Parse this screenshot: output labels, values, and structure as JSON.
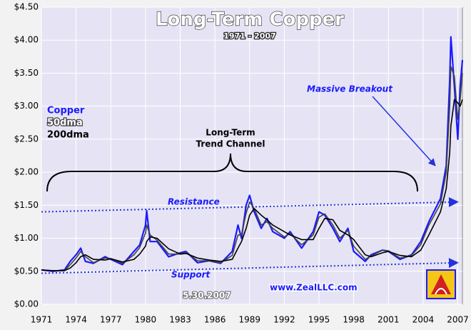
{
  "chart_data": {
    "type": "line",
    "title": "Long-Term Copper",
    "subtitle": "1971 - 2007",
    "x": [
      1971,
      1972,
      1973,
      1973.5,
      1974,
      1974.4,
      1974.8,
      1975.5,
      1976.5,
      1977,
      1978,
      1979,
      1979.5,
      1980,
      1980.1,
      1980.4,
      1981,
      1982,
      1983,
      1983.5,
      1984.5,
      1985.5,
      1986.5,
      1987.5,
      1988,
      1988.3,
      1988.7,
      1989,
      1989.4,
      1990,
      1990.5,
      1991,
      1992,
      1992.5,
      1993.5,
      1994.5,
      1995,
      1995.5,
      1996.2,
      1996.8,
      1997.5,
      1998,
      1999,
      1999.5,
      2000.5,
      2001,
      2002,
      2003,
      2003.8,
      2004.5,
      2005.5,
      2006,
      2006.3,
      2006.4,
      2006.7,
      2007,
      2007.2,
      2007.4
    ],
    "series": [
      {
        "name": "Copper",
        "color": "#1a1aff",
        "values": [
          0.52,
          0.5,
          0.52,
          0.65,
          0.75,
          0.85,
          0.65,
          0.62,
          0.72,
          0.68,
          0.6,
          0.8,
          0.9,
          1.2,
          1.42,
          0.95,
          0.95,
          0.72,
          0.78,
          0.8,
          0.63,
          0.66,
          0.62,
          0.8,
          1.2,
          1.0,
          1.5,
          1.65,
          1.4,
          1.15,
          1.3,
          1.1,
          1.0,
          1.1,
          0.85,
          1.1,
          1.4,
          1.35,
          1.15,
          0.95,
          1.15,
          0.8,
          0.65,
          0.75,
          0.82,
          0.8,
          0.68,
          0.75,
          0.95,
          1.25,
          1.6,
          2.1,
          3.4,
          4.05,
          3.3,
          2.5,
          3.3,
          3.7
        ]
      },
      {
        "name": "50dma",
        "color": "#444444",
        "values": [
          0.52,
          0.51,
          0.51,
          0.6,
          0.7,
          0.8,
          0.72,
          0.63,
          0.7,
          0.69,
          0.62,
          0.75,
          0.86,
          1.08,
          1.2,
          1.05,
          0.97,
          0.76,
          0.76,
          0.79,
          0.66,
          0.66,
          0.63,
          0.74,
          1.05,
          1.05,
          1.38,
          1.55,
          1.45,
          1.2,
          1.25,
          1.15,
          1.02,
          1.07,
          0.9,
          1.05,
          1.32,
          1.37,
          1.2,
          1.0,
          1.12,
          0.88,
          0.68,
          0.73,
          0.82,
          0.81,
          0.7,
          0.74,
          0.9,
          1.2,
          1.52,
          2.0,
          3.0,
          3.6,
          3.45,
          2.8,
          3.1,
          3.5
        ]
      },
      {
        "name": "200dma",
        "color": "#000000",
        "values": [
          0.52,
          0.51,
          0.51,
          0.55,
          0.63,
          0.72,
          0.75,
          0.68,
          0.67,
          0.69,
          0.64,
          0.68,
          0.76,
          0.88,
          0.95,
          1.02,
          1.0,
          0.84,
          0.76,
          0.77,
          0.7,
          0.67,
          0.65,
          0.68,
          0.85,
          0.95,
          1.15,
          1.35,
          1.45,
          1.35,
          1.28,
          1.2,
          1.1,
          1.05,
          0.98,
          0.98,
          1.15,
          1.3,
          1.28,
          1.12,
          1.05,
          0.98,
          0.75,
          0.72,
          0.78,
          0.8,
          0.74,
          0.72,
          0.82,
          1.05,
          1.4,
          1.75,
          2.3,
          2.7,
          3.1,
          3.05,
          3.0,
          3.1
        ]
      }
    ],
    "trendlines": [
      {
        "name": "Resistance",
        "color": "#2233dd",
        "x": [
          1971,
          2007
        ],
        "values": [
          1.4,
          1.55
        ]
      },
      {
        "name": "Support",
        "color": "#2233dd",
        "x": [
          1971,
          2007
        ],
        "values": [
          0.47,
          0.63
        ]
      }
    ],
    "annotations": {
      "channel": [
        "Long-Term",
        "Trend Channel"
      ],
      "breakout": "Massive Breakout",
      "date": "5.30.2007",
      "site": "www.ZealLLC.com"
    },
    "xlim": [
      1971,
      2007.4
    ],
    "ylim": [
      0,
      4.5
    ],
    "xticks": [
      1971,
      1974,
      1977,
      1980,
      1983,
      1986,
      1989,
      1992,
      1995,
      1998,
      2001,
      2004,
      2007
    ],
    "yticks": [
      {
        "value": 0,
        "label": "$0.00"
      },
      {
        "value": 0.5,
        "label": "$0.50"
      },
      {
        "value": 1,
        "label": "$1.00"
      },
      {
        "value": 1.5,
        "label": "$1.50"
      },
      {
        "value": 2,
        "label": "$2.00"
      },
      {
        "value": 2.5,
        "label": "$2.50"
      },
      {
        "value": 3,
        "label": "$3.00"
      },
      {
        "value": 3.5,
        "label": "$3.50"
      },
      {
        "value": 4,
        "label": "$4.00"
      },
      {
        "value": 4.5,
        "label": "$4.50"
      }
    ],
    "grid": true
  }
}
